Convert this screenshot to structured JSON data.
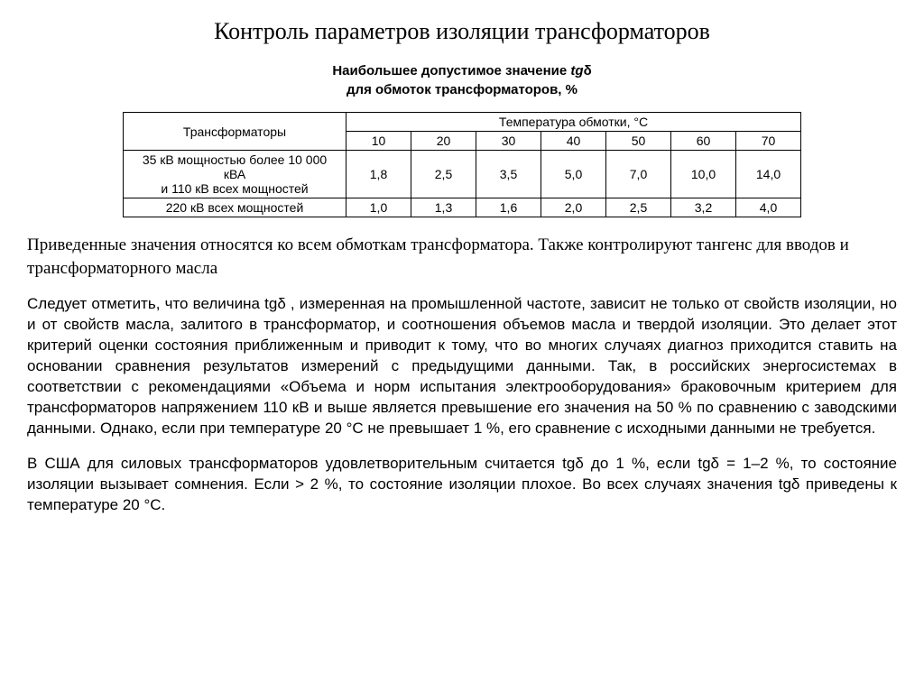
{
  "title": "Контроль параметров изоляции трансформаторов",
  "subtitle_line1_prefix": "Наибольшее допустимое значение ",
  "subtitle_line1_tg": "tg",
  "subtitle_line1_delta": "δ",
  "subtitle_line2": "для обмоток трансформаторов, %",
  "table": {
    "header_transformers": "Трансформаторы",
    "header_temp": "Температура обмотки, °С",
    "temp_cols": [
      "10",
      "20",
      "30",
      "40",
      "50",
      "60",
      "70"
    ],
    "rows": [
      {
        "label_line1": "35 кВ мощностью более 10 000",
        "label_line2": "кВА",
        "label_line3": "и 110 кВ всех мощностей",
        "values": [
          "1,8",
          "2,5",
          "3,5",
          "5,0",
          "7,0",
          "10,0",
          "14,0"
        ]
      },
      {
        "label": "220 кВ всех мощностей",
        "values": [
          "1,0",
          "1,3",
          "1,6",
          "2,0",
          "2,5",
          "3,2",
          "4,0"
        ]
      }
    ]
  },
  "para1": "Приведенные значения относятся ко всем обмоткам трансформатора. Также контролируют тангенс для вводов и трансформаторного масла",
  "para2": " Следует отметить, что величина tgδ , измеренная на промышленной частоте, зависит не только от свойств изоляции, но и от свойств масла, залитого в трансформатор, и соотношения объемов масла и твердой изоляции. Это делает этот критерий оценки состояния приближенным и приводит к тому, что во многих случаях диагноз приходится ставить на основании сравнения результатов измерений с предыдущими данными. Так, в российских энергосистемах в соответствии с рекомендациями «Объема и норм испытания электрооборудования» браковочным критерием для трансформаторов напряжением 110 кВ и выше является превышение его значения на 50 % по сравнению с заводскими данными. Однако, если при температуре 20 °С не превышает 1 %, его сравнение с исходными данными не требуется.",
  "para3": "В США для силовых трансформаторов удовлетворительным считается tgδ до 1 %, если  tgδ = 1–2 %, то состояние изоляции вызывает сомнения. Если > 2 %, то состояние изоляции плохое. Во всех случаях значения  tgδ приведены к температуре 20 °С."
}
